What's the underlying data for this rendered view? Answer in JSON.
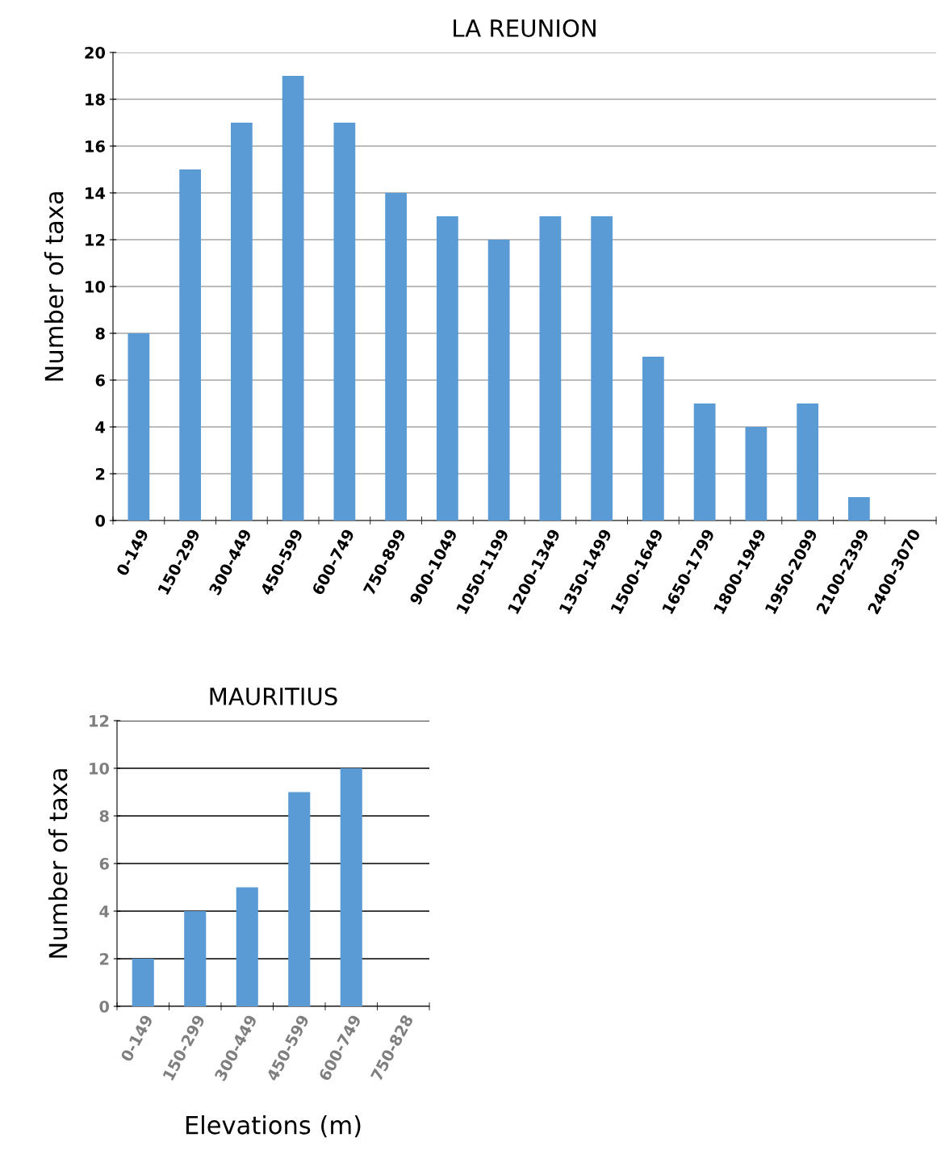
{
  "chart_data": [
    {
      "type": "bar",
      "title": "LA REUNION",
      "ylabel": "Number of taxa",
      "categories": [
        "0-149",
        "150-299",
        "300-449",
        "450-599",
        "600-749",
        "750-899",
        "900-1049",
        "1050-1199",
        "1200-1349",
        "1350-1499",
        "1500-1649",
        "1650-1799",
        "1800-1949",
        "1950-2099",
        "2100-2399",
        "2400-3070"
      ],
      "values": [
        8,
        15,
        17,
        19,
        17,
        14,
        13,
        12,
        13,
        13,
        7,
        5,
        4,
        5,
        1,
        0
      ],
      "color": "#5b9bd5",
      "ylim": [
        0,
        20
      ],
      "yticks": [
        0,
        2,
        4,
        6,
        8,
        10,
        12,
        14,
        16,
        18,
        20
      ],
      "grid": "y"
    },
    {
      "type": "bar",
      "title": "MAURITIUS",
      "ylabel": "Number of taxa",
      "xlabel": "Elevations (m)",
      "categories": [
        "0-149",
        "150-299",
        "300-449",
        "450-599",
        "600-749",
        "750-828"
      ],
      "values": [
        2,
        4,
        5,
        9,
        10,
        0
      ],
      "color": "#5b9bd5",
      "ylim": [
        0,
        12
      ],
      "yticks": [
        0,
        2,
        4,
        6,
        8,
        10,
        12
      ],
      "grid": "y"
    }
  ]
}
